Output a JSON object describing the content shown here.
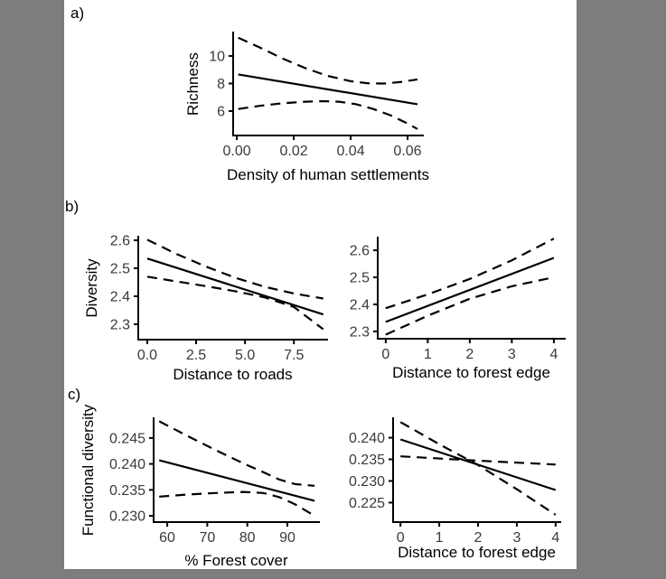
{
  "figure": {
    "panel_labels": {
      "a": "a)",
      "b": "b)",
      "c": "c)"
    }
  },
  "colors": {
    "background": "#7d7d7d",
    "panel_bg": "#ffffff",
    "line": "#000000",
    "axis": "#000000",
    "tick_text": "#3a3a3a",
    "title_text": "#000000"
  },
  "chart_data": [
    {
      "panel_slot": "a",
      "type": "line",
      "title": "",
      "xlabel": "Density of human settlements",
      "ylabel": "Richness",
      "grid": false,
      "legend": null,
      "xlim": [
        -0.0013,
        0.0654
      ],
      "ylim": [
        4.23,
        11.7
      ],
      "xticks": [
        {
          "v": 0.0,
          "label": "0.00"
        },
        {
          "v": 0.02,
          "label": "0.02"
        },
        {
          "v": 0.04,
          "label": "0.04"
        },
        {
          "v": 0.06,
          "label": "0.06"
        }
      ],
      "yticks": [
        {
          "v": 6,
          "label": "6"
        },
        {
          "v": 8,
          "label": "8"
        },
        {
          "v": 10,
          "label": "10"
        }
      ],
      "series": [
        {
          "name": "fitted",
          "style": "solid",
          "points": [
            [
              0.0005,
              8.66
            ],
            [
              0.0635,
              6.5
            ]
          ]
        },
        {
          "name": "ci-upper",
          "style": "dashed",
          "points": [
            [
              0.0005,
              11.32
            ],
            [
              0.008,
              10.62
            ],
            [
              0.016,
              9.82
            ],
            [
              0.024,
              9.12
            ],
            [
              0.032,
              8.55
            ],
            [
              0.04,
              8.17
            ],
            [
              0.046,
              8.02
            ],
            [
              0.052,
              8.0
            ],
            [
              0.058,
              8.12
            ],
            [
              0.0635,
              8.3
            ]
          ]
        },
        {
          "name": "ci-lower",
          "style": "dashed",
          "points": [
            [
              0.0005,
              6.15
            ],
            [
              0.008,
              6.38
            ],
            [
              0.016,
              6.57
            ],
            [
              0.024,
              6.68
            ],
            [
              0.03,
              6.72
            ],
            [
              0.036,
              6.68
            ],
            [
              0.042,
              6.5
            ],
            [
              0.048,
              6.15
            ],
            [
              0.054,
              5.7
            ],
            [
              0.059,
              5.2
            ],
            [
              0.0635,
              4.7
            ]
          ]
        }
      ]
    },
    {
      "panel_slot": "b1",
      "type": "line",
      "title": "",
      "xlabel": "Distance to roads",
      "ylabel": "Diversity",
      "grid": false,
      "legend": null,
      "xlim": [
        -0.46,
        9.2
      ],
      "ylim": [
        2.245,
        2.613
      ],
      "xticks": [
        {
          "v": 0.0,
          "label": "0.0"
        },
        {
          "v": 2.5,
          "label": "2.5"
        },
        {
          "v": 5.0,
          "label": "5.0"
        },
        {
          "v": 7.5,
          "label": "7.5"
        }
      ],
      "yticks": [
        {
          "v": 2.3,
          "label": "2.3"
        },
        {
          "v": 2.4,
          "label": "2.4"
        },
        {
          "v": 2.5,
          "label": "2.5"
        },
        {
          "v": 2.6,
          "label": "2.6"
        }
      ],
      "series": [
        {
          "name": "fitted",
          "style": "solid",
          "points": [
            [
              0,
              2.535
            ],
            [
              9,
              2.335
            ]
          ]
        },
        {
          "name": "ci-upper",
          "style": "dashed",
          "points": [
            [
              0,
              2.602
            ],
            [
              1.5,
              2.551
            ],
            [
              3,
              2.506
            ],
            [
              4.5,
              2.466
            ],
            [
              6,
              2.434
            ],
            [
              7.5,
              2.41
            ],
            [
              9,
              2.392
            ]
          ]
        },
        {
          "name": "ci-lower",
          "style": "dashed",
          "points": [
            [
              0,
              2.47
            ],
            [
              1.5,
              2.453
            ],
            [
              3,
              2.436
            ],
            [
              4.5,
              2.418
            ],
            [
              6,
              2.396
            ],
            [
              7.5,
              2.362
            ],
            [
              9,
              2.282
            ]
          ]
        }
      ]
    },
    {
      "panel_slot": "b2",
      "type": "line",
      "title": "",
      "xlabel": "Distance to forest edge",
      "ylabel": "",
      "grid": false,
      "legend": null,
      "xlim": [
        -0.19,
        4.26
      ],
      "ylim": [
        2.273,
        2.647
      ],
      "xticks": [
        {
          "v": 0,
          "label": "0"
        },
        {
          "v": 1,
          "label": "1"
        },
        {
          "v": 2,
          "label": "2"
        },
        {
          "v": 3,
          "label": "3"
        },
        {
          "v": 4,
          "label": "4"
        }
      ],
      "yticks": [
        {
          "v": 2.3,
          "label": "2.3"
        },
        {
          "v": 2.4,
          "label": "2.4"
        },
        {
          "v": 2.5,
          "label": "2.5"
        },
        {
          "v": 2.6,
          "label": "2.6"
        }
      ],
      "series": [
        {
          "name": "fitted",
          "style": "solid",
          "points": [
            [
              0,
              2.335
            ],
            [
              4,
              2.572
            ]
          ]
        },
        {
          "name": "ci-upper",
          "style": "dashed",
          "points": [
            [
              0,
              2.386
            ],
            [
              1,
              2.437
            ],
            [
              2,
              2.494
            ],
            [
              3,
              2.563
            ],
            [
              4,
              2.643
            ]
          ]
        },
        {
          "name": "ci-lower",
          "style": "dashed",
          "points": [
            [
              0,
              2.288
            ],
            [
              1,
              2.358
            ],
            [
              2,
              2.421
            ],
            [
              3,
              2.467
            ],
            [
              4,
              2.5
            ]
          ]
        }
      ]
    },
    {
      "panel_slot": "c1",
      "type": "line",
      "title": "",
      "xlabel": "% Forest cover",
      "ylabel": "Functional diversity",
      "grid": false,
      "legend": null,
      "xlim": [
        56.6,
        97.9
      ],
      "ylim": [
        0.2288,
        0.2488
      ],
      "xticks": [
        {
          "v": 60,
          "label": "60"
        },
        {
          "v": 70,
          "label": "70"
        },
        {
          "v": 80,
          "label": "80"
        },
        {
          "v": 90,
          "label": "90"
        }
      ],
      "yticks": [
        {
          "v": 0.23,
          "label": "0.230"
        },
        {
          "v": 0.235,
          "label": "0.235"
        },
        {
          "v": 0.24,
          "label": "0.240"
        },
        {
          "v": 0.245,
          "label": "0.245"
        }
      ],
      "series": [
        {
          "name": "fitted",
          "style": "solid",
          "points": [
            [
              58,
              0.2407
            ],
            [
              96.8,
              0.2329
            ]
          ]
        },
        {
          "name": "ci-upper",
          "style": "dashed",
          "points": [
            [
              58,
              0.2482
            ],
            [
              65,
              0.2454
            ],
            [
              72,
              0.2427
            ],
            [
              79,
              0.2401
            ],
            [
              84,
              0.2384
            ],
            [
              88,
              0.237
            ],
            [
              92,
              0.2361
            ],
            [
              96.8,
              0.2358
            ]
          ]
        },
        {
          "name": "ci-lower",
          "style": "dashed",
          "points": [
            [
              58,
              0.2337
            ],
            [
              65,
              0.2341
            ],
            [
              72,
              0.2344
            ],
            [
              79,
              0.2346
            ],
            [
              84,
              0.2344
            ],
            [
              88,
              0.2336
            ],
            [
              92,
              0.2322
            ],
            [
              96.8,
              0.23
            ]
          ]
        }
      ]
    },
    {
      "panel_slot": "c2",
      "type": "line",
      "title": "",
      "xlabel": "Distance to forest edge",
      "ylabel": "",
      "grid": false,
      "legend": null,
      "xlim": [
        -0.19,
        4.12
      ],
      "ylim": [
        0.2205,
        0.2445
      ],
      "xticks": [
        {
          "v": 0,
          "label": "0"
        },
        {
          "v": 1,
          "label": "1"
        },
        {
          "v": 2,
          "label": "2"
        },
        {
          "v": 3,
          "label": "3"
        },
        {
          "v": 4,
          "label": "4"
        }
      ],
      "yticks": [
        {
          "v": 0.225,
          "label": "0.225"
        },
        {
          "v": 0.23,
          "label": "0.230"
        },
        {
          "v": 0.235,
          "label": "0.235"
        },
        {
          "v": 0.24,
          "label": "0.240"
        }
      ],
      "series": [
        {
          "name": "fitted",
          "style": "solid",
          "points": [
            [
              0,
              0.2396
            ],
            [
              4,
              0.2279
            ]
          ]
        },
        {
          "name": "ci-steep",
          "style": "dashed",
          "points": [
            [
              0,
              0.2436
            ],
            [
              1,
              0.2385
            ],
            [
              2,
              0.2337
            ],
            [
              3,
              0.2281
            ],
            [
              4,
              0.2222
            ]
          ]
        },
        {
          "name": "ci-flat",
          "style": "dashed",
          "points": [
            [
              0,
              0.2357
            ],
            [
              2,
              0.2347
            ],
            [
              4,
              0.2338
            ]
          ]
        }
      ]
    }
  ]
}
